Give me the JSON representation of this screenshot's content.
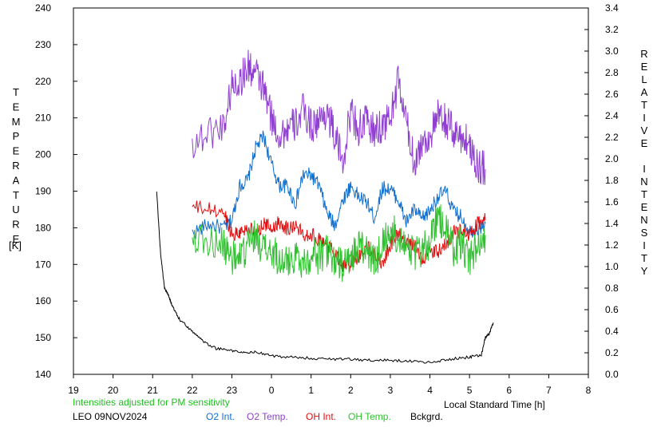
{
  "chart_data": {
    "type": "line",
    "x_label": "Local Standard Time [h]",
    "x_ticks": [
      "19",
      "20",
      "21",
      "22",
      "23",
      "0",
      "1",
      "2",
      "3",
      "4",
      "5",
      "6",
      "7",
      "8"
    ],
    "y_left_label_vertical": "TEMPERATURE",
    "y_left_unit": "[K]",
    "y_left_range": [
      140,
      240
    ],
    "y_left_ticks": [
      "240",
      "230",
      "220",
      "210",
      "200",
      "190",
      "180",
      "170",
      "160",
      "150",
      "140"
    ],
    "y_right_label_vertical": "RELATIVE INTENSITY",
    "y_right_range": [
      0.0,
      3.4
    ],
    "y_right_ticks": [
      "3.4",
      "3.2",
      "3.0",
      "2.8",
      "2.6",
      "2.4",
      "2.2",
      "2.0",
      "1.8",
      "1.6",
      "1.4",
      "1.2",
      "1.0",
      "0.8",
      "0.6",
      "0.4",
      "0.2",
      "0.0"
    ],
    "note": "Intensities adjusted for PM sensitivity",
    "station_date": "LEO 09NOV2024",
    "grid": false,
    "series": [
      {
        "name": "O2 Int.",
        "color": "#1070d0",
        "axis": "right",
        "x": [
          22.0,
          22.4,
          22.8,
          23.0,
          23.2,
          23.4,
          23.6,
          23.8,
          24.0,
          24.2,
          24.4,
          24.6,
          24.8,
          25.0,
          25.2,
          25.4,
          25.6,
          25.8,
          26.0,
          26.2,
          26.4,
          26.6,
          26.8,
          27.0,
          27.2,
          27.4,
          27.6,
          27.8,
          28.0,
          28.2,
          28.4,
          28.6,
          28.8,
          29.0,
          29.2,
          29.4
        ],
        "y": [
          1.31,
          1.39,
          1.36,
          1.43,
          1.75,
          1.8,
          2.1,
          2.21,
          1.95,
          1.75,
          1.75,
          1.58,
          1.85,
          1.85,
          1.75,
          1.5,
          1.38,
          1.62,
          1.75,
          1.65,
          1.6,
          1.45,
          1.73,
          1.72,
          1.62,
          1.41,
          1.53,
          1.44,
          1.52,
          1.65,
          1.7,
          1.51,
          1.46,
          1.33,
          1.35,
          1.4
        ]
      },
      {
        "name": "O2 Temp.",
        "color": "#9040d0",
        "axis": "left",
        "x": [
          22.0,
          22.4,
          22.8,
          23.0,
          23.2,
          23.4,
          23.6,
          23.8,
          24.0,
          24.2,
          24.4,
          24.6,
          24.8,
          25.0,
          25.2,
          25.4,
          25.6,
          25.8,
          26.0,
          26.2,
          26.4,
          26.6,
          26.8,
          27.0,
          27.2,
          27.4,
          27.6,
          27.8,
          28.0,
          28.2,
          28.4,
          28.6,
          28.8,
          29.0,
          29.2,
          29.4
        ],
        "y": [
          203,
          206,
          208,
          219,
          220,
          224,
          222,
          218,
          210,
          205,
          207,
          208,
          212,
          208,
          209,
          212,
          205,
          198,
          212,
          207,
          209,
          206,
          208,
          210,
          220,
          209,
          198,
          203,
          205,
          210,
          209,
          206,
          205,
          203,
          197,
          196
        ]
      },
      {
        "name": "OH Int.",
        "color": "#e01010",
        "axis": "right",
        "x": [
          22.0,
          22.4,
          22.8,
          23.0,
          23.2,
          23.4,
          23.6,
          23.8,
          24.0,
          24.2,
          24.4,
          24.6,
          24.8,
          25.0,
          25.2,
          25.4,
          25.6,
          25.8,
          26.0,
          26.2,
          26.4,
          26.6,
          26.8,
          27.0,
          27.2,
          27.4,
          27.6,
          27.8,
          28.0,
          28.2,
          28.4,
          28.6,
          28.8,
          29.0,
          29.2,
          29.4
        ],
        "y": [
          1.55,
          1.53,
          1.5,
          1.3,
          1.32,
          1.36,
          1.3,
          1.4,
          1.35,
          1.42,
          1.35,
          1.38,
          1.3,
          1.3,
          1.25,
          1.2,
          1.13,
          1.02,
          1.02,
          1.1,
          1.18,
          1.12,
          1.03,
          1.2,
          1.31,
          1.2,
          1.2,
          1.08,
          1.12,
          1.14,
          1.2,
          1.32,
          1.33,
          1.28,
          1.4,
          1.43
        ]
      },
      {
        "name": "OH Temp.",
        "color": "#30c030",
        "axis": "left",
        "x": [
          22.0,
          22.4,
          22.8,
          23.0,
          23.2,
          23.4,
          23.6,
          23.8,
          24.0,
          24.2,
          24.4,
          24.6,
          24.8,
          25.0,
          25.2,
          25.4,
          25.6,
          25.8,
          26.0,
          26.2,
          26.4,
          26.6,
          26.8,
          27.0,
          27.2,
          27.4,
          27.6,
          27.8,
          28.0,
          28.2,
          28.4,
          28.6,
          28.8,
          29.0,
          29.2,
          29.4
        ],
        "y": [
          178,
          176,
          175,
          172,
          171,
          175,
          178,
          174,
          173,
          172,
          170,
          173,
          170,
          173,
          172,
          174,
          171,
          169,
          172,
          175,
          174,
          170,
          176,
          179,
          178,
          177,
          172,
          174,
          176,
          183,
          179,
          174,
          176,
          171,
          176,
          178
        ]
      },
      {
        "name": "Bckgrd.",
        "color": "#000000",
        "axis": "right",
        "x": [
          21.1,
          21.2,
          21.3,
          21.4,
          21.5,
          21.7,
          22.0,
          22.3,
          22.6,
          23.0,
          23.3,
          23.6,
          24.0,
          24.5,
          25.0,
          25.5,
          26.0,
          26.5,
          27.0,
          27.5,
          28.0,
          28.5,
          29.0,
          29.3,
          29.4,
          29.5,
          29.6
        ],
        "y": [
          1.7,
          1.12,
          0.8,
          0.73,
          0.63,
          0.5,
          0.4,
          0.3,
          0.24,
          0.22,
          0.2,
          0.21,
          0.17,
          0.16,
          0.15,
          0.14,
          0.14,
          0.13,
          0.13,
          0.12,
          0.11,
          0.14,
          0.16,
          0.18,
          0.34,
          0.38,
          0.48
        ]
      }
    ]
  }
}
